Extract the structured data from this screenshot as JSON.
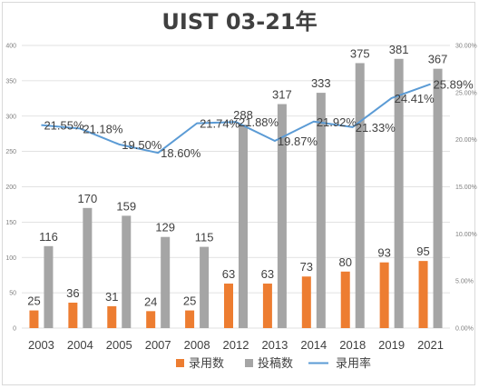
{
  "chart_data": {
    "type": "bar",
    "title": "UIST 03-21年",
    "categories": [
      "2003",
      "2004",
      "2005",
      "2007",
      "2008",
      "2012",
      "2013",
      "2014",
      "2018",
      "2019",
      "2021"
    ],
    "series": [
      {
        "name": "录用数",
        "type": "bar",
        "axis": "left",
        "color": "#ed7d31",
        "values": [
          25,
          36,
          31,
          24,
          25,
          63,
          63,
          73,
          80,
          93,
          95
        ]
      },
      {
        "name": "投稿数",
        "type": "bar",
        "axis": "left",
        "color": "#a5a5a5",
        "values": [
          116,
          170,
          159,
          129,
          115,
          288,
          317,
          333,
          375,
          381,
          367
        ]
      },
      {
        "name": "录用率",
        "type": "line",
        "axis": "right",
        "color": "#5b9bd5",
        "values": [
          21.55,
          21.18,
          19.5,
          18.6,
          21.74,
          21.88,
          19.87,
          21.92,
          21.33,
          24.41,
          25.89
        ],
        "labels": [
          "21.55%",
          "21.18%",
          "19.50%",
          "18.60%",
          "21.74%",
          "21.88%",
          "19.87%",
          "21.92%",
          "21.33%",
          "24.41%",
          "25.89%"
        ]
      }
    ],
    "y_left": {
      "min": 0,
      "max": 400,
      "ticks": [
        "0",
        "50",
        "100",
        "150",
        "200",
        "250",
        "300",
        "350",
        "400"
      ]
    },
    "y_right": {
      "min": 0,
      "max": 30,
      "ticks": [
        "0.00%",
        "5.00%",
        "10.00%",
        "15.00%",
        "20.00%",
        "25.00%",
        "30.00%"
      ]
    },
    "grid": true,
    "legend": "bottom"
  }
}
